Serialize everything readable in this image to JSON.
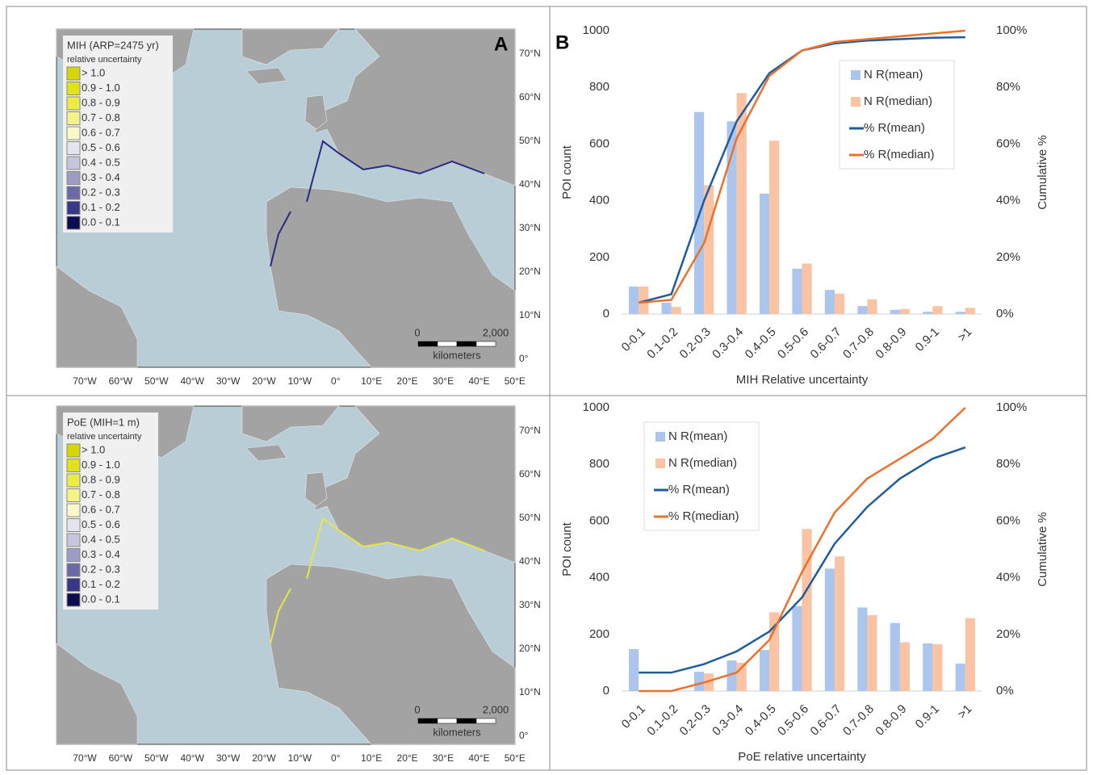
{
  "maps": [
    {
      "title": "MIH (ARP=2475 yr)",
      "subtitle": "relative uncertainty",
      "panel_label": "A",
      "legend": [
        {
          "label": "> 1.0",
          "color": "#d6d600"
        },
        {
          "label": "0.9 - 1.0",
          "color": "#e2e21a"
        },
        {
          "label": "0.8 - 0.9",
          "color": "#ecec46"
        },
        {
          "label": "0.7 - 0.8",
          "color": "#f3f38a"
        },
        {
          "label": "0.6 - 0.7",
          "color": "#f8f8c8"
        },
        {
          "label": "0.5 - 0.6",
          "color": "#e4e4ee"
        },
        {
          "label": "0.4 - 0.5",
          "color": "#c6c6dc"
        },
        {
          "label": "0.3 - 0.4",
          "color": "#9c9cc4"
        },
        {
          "label": "0.2 - 0.3",
          "color": "#6a6aa8"
        },
        {
          "label": "0.1 - 0.2",
          "color": "#383888"
        },
        {
          "label": "0.0 - 0.1",
          "color": "#0c0c50"
        }
      ],
      "lon_labels": [
        "70°W",
        "60°W",
        "50°W",
        "40°W",
        "30°W",
        "20°W",
        "10°W",
        "0°",
        "10°E",
        "20°E",
        "30°E",
        "40°E",
        "50°E"
      ],
      "lat_labels": [
        "70°N",
        "60°N",
        "50°N",
        "40°N",
        "30°N",
        "20°N",
        "10°N",
        "0°"
      ],
      "scale_labels": [
        "0",
        "2,000",
        "kilometers"
      ]
    },
    {
      "title": "PoE (MIH=1 m)",
      "subtitle": "relative uncertainty",
      "legend": [
        {
          "label": "> 1.0",
          "color": "#d6d600"
        },
        {
          "label": "0.9 - 1.0",
          "color": "#e2e21a"
        },
        {
          "label": "0.8 - 0.9",
          "color": "#ecec46"
        },
        {
          "label": "0.7 - 0.8",
          "color": "#f3f38a"
        },
        {
          "label": "0.6 - 0.7",
          "color": "#f8f8c8"
        },
        {
          "label": "0.5 - 0.6",
          "color": "#e4e4ee"
        },
        {
          "label": "0.4 - 0.5",
          "color": "#c6c6dc"
        },
        {
          "label": "0.3 - 0.4",
          "color": "#9c9cc4"
        },
        {
          "label": "0.2 - 0.3",
          "color": "#6a6aa8"
        },
        {
          "label": "0.1 - 0.2",
          "color": "#383888"
        },
        {
          "label": "0.0 - 0.1",
          "color": "#0c0c50"
        }
      ],
      "lon_labels": [
        "70°W",
        "60°W",
        "50°W",
        "40°W",
        "30°W",
        "20°W",
        "10°W",
        "0°",
        "10°E",
        "20°E",
        "30°E",
        "40°E",
        "50°E"
      ],
      "lat_labels": [
        "70°N",
        "60°N",
        "50°N",
        "40°N",
        "30°N",
        "20°N",
        "10°N",
        "0°"
      ],
      "scale_labels": [
        "0",
        "2,000",
        "kilometers"
      ]
    }
  ],
  "chart_data": [
    {
      "type": "combo",
      "panel_label": "B",
      "x_label": "MIH Relative uncertainty",
      "y_label": "POI count",
      "y2_label": "Cumulative %",
      "legend": "upper right",
      "categories": [
        "0-0.1",
        "0.1-0.2",
        "0.2-0.3",
        "0.3-0.4",
        "0.4-0.5",
        "0.5-0.6",
        "0.6-0.7",
        "0.7-0.8",
        "0.8-0.9",
        "0.9-1",
        ">1"
      ],
      "ylim": [
        0,
        1000
      ],
      "yticks": [
        0,
        200,
        400,
        600,
        800,
        1000
      ],
      "y2lim": [
        0,
        100
      ],
      "y2ticks": [
        {
          "value": 0,
          "label": "0%"
        },
        {
          "value": 20,
          "label": "20%"
        },
        {
          "value": 40,
          "label": "40%"
        },
        {
          "value": 60,
          "label": "60%"
        },
        {
          "value": 80,
          "label": "80%"
        },
        {
          "value": 100,
          "label": "100%"
        }
      ],
      "series": [
        {
          "name": "N R(mean)",
          "kind": "bar",
          "color": "#abc5ec",
          "values": [
            97,
            40,
            713,
            680,
            425,
            160,
            85,
            28,
            15,
            8,
            8
          ]
        },
        {
          "name": "N R(median)",
          "kind": "bar",
          "color": "#f9c3a4",
          "values": [
            97,
            25,
            455,
            780,
            612,
            178,
            72,
            52,
            18,
            28,
            22
          ]
        },
        {
          "name": "% R(mean)",
          "kind": "line",
          "axis": "y2",
          "color": "#1f5c9c",
          "values": [
            4,
            7,
            40,
            68,
            85,
            93,
            95.5,
            96.5,
            97,
            97.5,
            97.7
          ]
        },
        {
          "name": "% R(median)",
          "kind": "line",
          "axis": "y2",
          "color": "#e8722c",
          "values": [
            4,
            5,
            25,
            62,
            84,
            93,
            96,
            97,
            98,
            99,
            100
          ]
        }
      ]
    },
    {
      "type": "combo",
      "x_label": "PoE relative uncertainty",
      "y_label": "POI count",
      "y2_label": "Cumulative %",
      "legend": "upper left",
      "categories": [
        "0-0.1",
        "0.1-0.2",
        "0.2-0.3",
        "0.3-0.4",
        "0.4-0.5",
        "0.5-0.6",
        "0.6-0.7",
        "0.7-0.8",
        "0.8-0.9",
        "0.9-1",
        ">1"
      ],
      "ylim": [
        0,
        1000
      ],
      "yticks": [
        0,
        200,
        400,
        600,
        800,
        1000
      ],
      "y2lim": [
        0,
        100
      ],
      "y2ticks": [
        {
          "value": 0,
          "label": "0%"
        },
        {
          "value": 20,
          "label": "20%"
        },
        {
          "value": 40,
          "label": "40%"
        },
        {
          "value": 60,
          "label": "60%"
        },
        {
          "value": 80,
          "label": "80%"
        },
        {
          "value": 100,
          "label": "100%"
        }
      ],
      "series": [
        {
          "name": "N R(mean)",
          "kind": "bar",
          "color": "#abc5ec",
          "values": [
            148,
            0,
            68,
            108,
            145,
            300,
            432,
            295,
            240,
            168,
            97
          ]
        },
        {
          "name": "N R(median)",
          "kind": "bar",
          "color": "#f9c3a4",
          "values": [
            0,
            0,
            62,
            100,
            278,
            572,
            475,
            268,
            172,
            165,
            257
          ]
        },
        {
          "name": "% R(mean)",
          "kind": "line",
          "axis": "y2",
          "color": "#1f5c9c",
          "values": [
            6.5,
            6.5,
            9.5,
            14,
            21,
            33,
            52,
            65,
            75,
            82,
            86
          ]
        },
        {
          "name": "% R(median)",
          "kind": "line",
          "axis": "y2",
          "color": "#e8722c",
          "values": [
            0,
            0,
            3,
            6.5,
            18,
            42,
            63,
            75,
            82,
            89,
            100
          ]
        }
      ]
    }
  ]
}
